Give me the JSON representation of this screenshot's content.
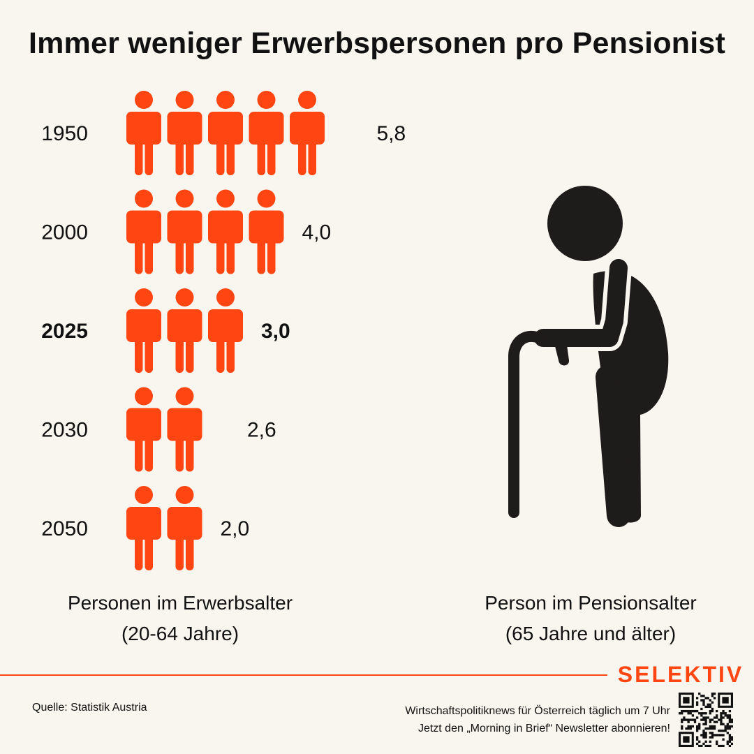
{
  "title": "Immer weniger Erwerbspersonen pro Pensionist",
  "chart_data": {
    "type": "pictogram",
    "categories": [
      "1950",
      "2000",
      "2025",
      "2030",
      "2050"
    ],
    "values": [
      5.8,
      4.0,
      3.0,
      2.6,
      2.0
    ],
    "value_labels": [
      "5,8",
      "4,0",
      "3,0",
      "2,6",
      "2,0"
    ],
    "highlight": "2025",
    "icon": "person-icon"
  },
  "captions": {
    "left_line1": "Personen im Erwerbsalter",
    "left_line2": "(20-64 Jahre)",
    "right_line1": "Person im Pensionsalter",
    "right_line2": "(65 Jahre und älter)"
  },
  "footer": {
    "brand": "SELEKTIV",
    "source": "Quelle: Statistik Austria",
    "promo_line1": "Wirtschaftspolitiknews für Österreich täglich um 7 Uhr",
    "promo_line2": "Jetzt den „Morning in Brief“ Newsletter abonnieren!"
  },
  "colors": {
    "worker_icon": "#ff4612",
    "pensioner_icon": "#1e1b1b",
    "background": "#f8f6ee",
    "accent_rule": "#ff4612",
    "brand": "#ff4612"
  }
}
